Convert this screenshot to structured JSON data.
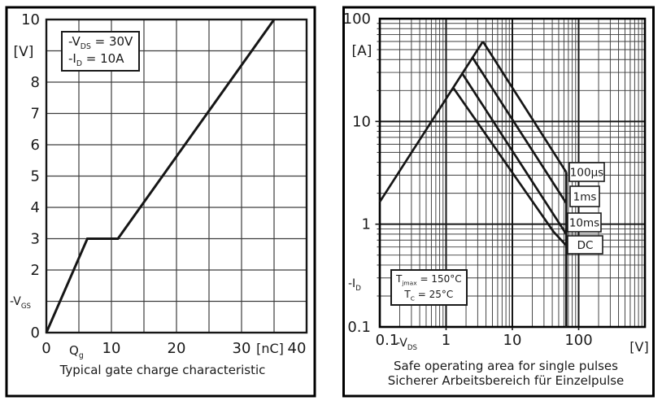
{
  "colors": {
    "ink": "#1a1a1a",
    "grid_minor": "#3d3d3d",
    "grid_major": "#161616",
    "panel_border": "#000000",
    "background": "#ffffff"
  },
  "left_chart": {
    "unit_y": "[V]",
    "unit_x": "[nC]",
    "y_axis_name": {
      "base": "-V",
      "sub": "GS"
    },
    "x_axis_name": {
      "base": "Q",
      "sub": "g"
    },
    "conditions": [
      {
        "base": "-V",
        "sub": "DS",
        "rest": " = 30V"
      },
      {
        "base": "-I",
        "sub": "D",
        "rest": " = 10A"
      }
    ],
    "title": "Typical gate charge characteristic"
  },
  "right_chart": {
    "unit_y": "[A]",
    "unit_x": "[V]",
    "y_axis_name": {
      "base": "-I",
      "sub": "D"
    },
    "x_axis_name": {
      "base": "-V",
      "sub": "DS"
    },
    "conditions": [
      {
        "base": "T",
        "sub": "jmax",
        "rest": " = 150°C"
      },
      {
        "base": "T",
        "sub": "C",
        "rest": " = 25°C"
      }
    ],
    "title": "Safe operating area for single pulses",
    "subtitle": "Sicherer Arbeitsbereich für Einzelpulse"
  },
  "chart_data": [
    {
      "type": "line",
      "scale": "linear",
      "title": "Typical gate charge characteristic",
      "xlabel": "Qg [nC]",
      "ylabel": "-VGS [V]",
      "xlim": [
        0,
        40
      ],
      "ylim": [
        0,
        10
      ],
      "grid": "on, 5 nC x-step, 1 V y-step",
      "x_ticks": [
        {
          "v": 0,
          "label": "0"
        },
        {
          "v": 10,
          "label": "10"
        },
        {
          "v": 20,
          "label": "20"
        },
        {
          "v": 30,
          "label": "30"
        },
        {
          "v": 40,
          "label": "40"
        }
      ],
      "y_ticks": [
        {
          "v": 10,
          "label": "10"
        },
        {
          "v": 8,
          "label": "8"
        },
        {
          "v": 7,
          "label": "7"
        },
        {
          "v": 6,
          "label": "6"
        },
        {
          "v": 5,
          "label": "5"
        },
        {
          "v": 4,
          "label": "4"
        },
        {
          "v": 3,
          "label": "3"
        },
        {
          "v": 2,
          "label": "2"
        },
        {
          "v": 0,
          "label": "0"
        }
      ],
      "conditions": [
        "-VDS = 30V",
        "-ID = 10A"
      ],
      "series": [
        {
          "name": "gate-charge-curve",
          "points": [
            [
              0,
              0
            ],
            [
              6.3,
              3
            ],
            [
              11,
              3
            ],
            [
              35,
              10
            ]
          ]
        }
      ]
    },
    {
      "type": "line",
      "scale": "log-log",
      "title": "Safe operating area for single pulses",
      "subtitle": "Sicherer Arbeitsbereich für Einzelpulse",
      "xlabel": "-VDS [V]",
      "ylabel": "-ID [A]",
      "xlim": [
        0.1,
        1000
      ],
      "ylim": [
        0.1,
        100
      ],
      "grid": "on, log majors at decades, minors at 2-9 multiples",
      "x_ticks": [
        {
          "v": 0.1,
          "label": "0.1"
        },
        {
          "v": 1,
          "label": "1"
        },
        {
          "v": 10,
          "label": "10"
        },
        {
          "v": 100,
          "label": "100"
        }
      ],
      "y_ticks": [
        {
          "v": 100,
          "label": "100"
        },
        {
          "v": 10,
          "label": "10"
        },
        {
          "v": 1,
          "label": "1"
        },
        {
          "v": 0.1,
          "label": "0.1"
        }
      ],
      "conditions": [
        "Tjmax = 150°C",
        "TC = 25°C"
      ],
      "series": [
        {
          "name": "rdson-limit-line",
          "points": [
            [
              0.1,
              1.65
            ],
            [
              3.6,
              60
            ]
          ]
        },
        {
          "name": "pulse-100us",
          "points": [
            [
              3.6,
              60
            ],
            [
              65,
              3.2
            ]
          ]
        },
        {
          "name": "pulse-1ms",
          "points": [
            [
              2.5,
              42
            ],
            [
              65,
              1.6
            ]
          ]
        },
        {
          "name": "pulse-10ms",
          "points": [
            [
              1.77,
              29
            ],
            [
              65,
              0.8
            ]
          ]
        },
        {
          "name": "dc",
          "points": [
            [
              1.3,
              21
            ],
            [
              42,
              0.84
            ],
            [
              65,
              0.62
            ]
          ]
        },
        {
          "name": "voltage-limit-line",
          "points": [
            [
              65,
              3.2
            ],
            [
              65,
              0.1
            ]
          ]
        }
      ],
      "curve_labels": [
        {
          "text": "100µs"
        },
        {
          "text": "1ms"
        },
        {
          "text": "10ms"
        },
        {
          "text": "DC"
        }
      ]
    }
  ]
}
